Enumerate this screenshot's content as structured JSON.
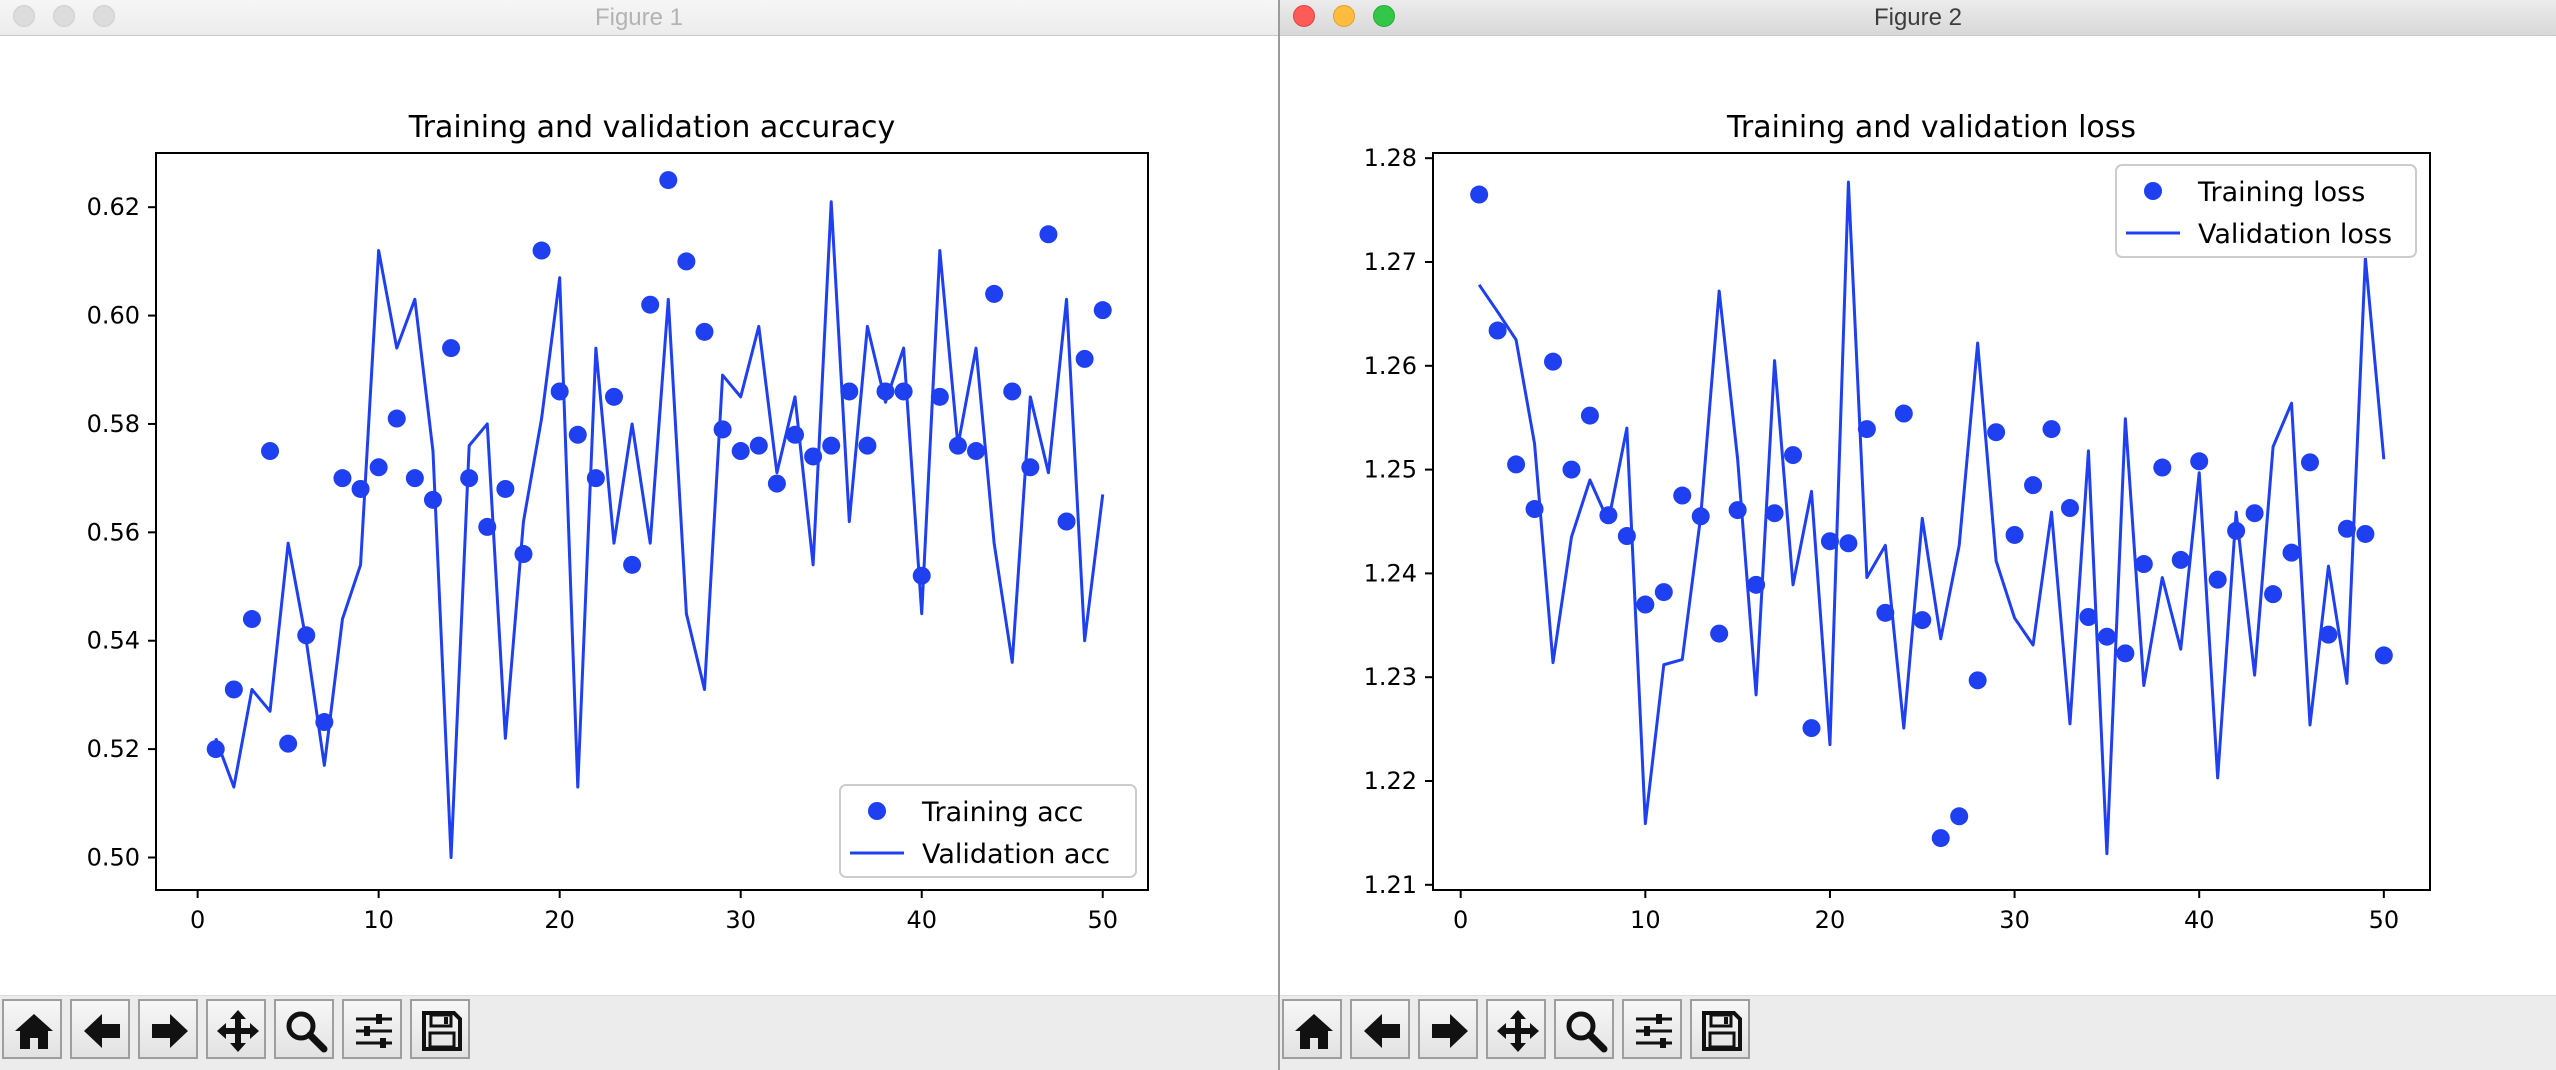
{
  "windows": [
    {
      "title": "Figure 1",
      "toolbar": [
        {
          "icon": "home-icon"
        },
        {
          "icon": "back-arrow-icon"
        },
        {
          "icon": "forward-arrow-icon"
        },
        {
          "icon": "pan-icon"
        },
        {
          "icon": "zoom-icon"
        },
        {
          "icon": "subplots-icon"
        },
        {
          "icon": "save-icon"
        }
      ],
      "chart_data": {
        "type": "line",
        "title": "Training and validation accuracy",
        "xlabel": "",
        "ylabel": "",
        "xlim": [
          -2.3,
          52.5
        ],
        "ylim": [
          0.494,
          0.63
        ],
        "xticks": [
          0,
          10,
          20,
          30,
          40,
          50
        ],
        "yticks": [
          0.5,
          0.52,
          0.54,
          0.56,
          0.58,
          0.6,
          0.62
        ],
        "ytick_labels": [
          "0.50",
          "0.52",
          "0.54",
          "0.56",
          "0.58",
          "0.60",
          "0.62"
        ],
        "xtick_labels": [
          "0",
          "10",
          "20",
          "30",
          "40",
          "50"
        ],
        "legend": {
          "placement": "lower right",
          "entries": [
            "Training acc",
            "Validation acc"
          ]
        },
        "color": "#1f40f0",
        "grid": false,
        "x": [
          1,
          2,
          3,
          4,
          5,
          6,
          7,
          8,
          9,
          10,
          11,
          12,
          13,
          14,
          15,
          16,
          17,
          18,
          19,
          20,
          21,
          22,
          23,
          24,
          25,
          26,
          27,
          28,
          29,
          30,
          31,
          32,
          33,
          34,
          35,
          36,
          37,
          38,
          39,
          40,
          41,
          42,
          43,
          44,
          45,
          46,
          47,
          48,
          49,
          50
        ],
        "series": [
          {
            "name": "Training acc",
            "style": "markers",
            "values": [
              0.52,
              0.531,
              0.544,
              0.575,
              0.521,
              0.541,
              0.525,
              0.57,
              0.568,
              0.572,
              0.581,
              0.57,
              0.566,
              0.594,
              0.57,
              0.561,
              0.568,
              0.556,
              0.612,
              0.586,
              0.578,
              0.57,
              0.585,
              0.554,
              0.602,
              0.625,
              0.61,
              0.597,
              0.579,
              0.575,
              0.576,
              0.569,
              0.578,
              0.574,
              0.576,
              0.586,
              0.576,
              0.586,
              0.586,
              0.552,
              0.585,
              0.576,
              0.575,
              0.604,
              0.586,
              0.572,
              0.615,
              0.562,
              0.592,
              0.601
            ]
          },
          {
            "name": "Validation acc",
            "style": "line",
            "values": [
              0.522,
              0.513,
              0.531,
              0.527,
              0.558,
              0.54,
              0.517,
              0.544,
              0.554,
              0.612,
              0.594,
              0.603,
              0.575,
              0.5,
              0.576,
              0.58,
              0.522,
              0.562,
              0.581,
              0.607,
              0.513,
              0.594,
              0.558,
              0.58,
              0.558,
              0.603,
              0.545,
              0.531,
              0.589,
              0.585,
              0.598,
              0.571,
              0.585,
              0.554,
              0.621,
              0.562,
              0.598,
              0.584,
              0.594,
              0.545,
              0.612,
              0.576,
              0.594,
              0.558,
              0.536,
              0.585,
              0.571,
              0.603,
              0.54,
              0.567
            ]
          }
        ]
      }
    },
    {
      "title": "Figure 2",
      "toolbar": [
        {
          "icon": "home-icon"
        },
        {
          "icon": "back-arrow-icon"
        },
        {
          "icon": "forward-arrow-icon"
        },
        {
          "icon": "pan-icon"
        },
        {
          "icon": "zoom-icon"
        },
        {
          "icon": "subplots-icon"
        },
        {
          "icon": "save-icon"
        }
      ],
      "chart_data": {
        "type": "line",
        "title": "Training and validation loss",
        "xlabel": "",
        "ylabel": "",
        "xlim": [
          -1.5,
          52.5
        ],
        "ylim": [
          1.2095,
          1.2805
        ],
        "xticks": [
          0,
          10,
          20,
          30,
          40,
          50
        ],
        "yticks": [
          1.21,
          1.22,
          1.23,
          1.24,
          1.25,
          1.26,
          1.27,
          1.28
        ],
        "ytick_labels": [
          "1.21",
          "1.22",
          "1.23",
          "1.24",
          "1.25",
          "1.26",
          "1.27",
          "1.28"
        ],
        "xtick_labels": [
          "0",
          "10",
          "20",
          "30",
          "40",
          "50"
        ],
        "legend": {
          "placement": "upper right",
          "entries": [
            "Training loss",
            "Validation loss"
          ]
        },
        "color": "#1f40f0",
        "grid": false,
        "x": [
          1,
          2,
          3,
          4,
          5,
          6,
          7,
          8,
          9,
          10,
          11,
          12,
          13,
          14,
          15,
          16,
          17,
          18,
          19,
          20,
          21,
          22,
          23,
          24,
          25,
          26,
          27,
          28,
          29,
          30,
          31,
          32,
          33,
          34,
          35,
          36,
          37,
          38,
          39,
          40,
          41,
          42,
          43,
          44,
          45,
          46,
          47,
          48,
          49,
          50
        ],
        "series": [
          {
            "name": "Training loss",
            "style": "markers",
            "values": [
              1.2765,
              1.2634,
              1.2505,
              1.2462,
              1.2604,
              1.25,
              1.2552,
              1.2456,
              1.2436,
              1.237,
              1.2382,
              1.2475,
              1.2455,
              1.2342,
              1.2461,
              1.2389,
              1.2458,
              1.2514,
              1.2251,
              1.2431,
              1.2429,
              1.2539,
              1.2362,
              1.2554,
              1.2355,
              1.2145,
              1.2166,
              1.2297,
              1.2536,
              1.2437,
              1.2485,
              1.2539,
              1.2463,
              1.2358,
              1.2339,
              1.2323,
              1.2409,
              1.2502,
              1.2413,
              1.2508,
              1.2394,
              1.2441,
              1.2458,
              1.238,
              1.242,
              1.2507,
              1.2341,
              1.2443,
              1.2438,
              1.2321
            ]
          },
          {
            "name": "Validation loss",
            "style": "line",
            "values": [
              1.2678,
              1.2652,
              1.2625,
              1.2525,
              1.2314,
              1.2435,
              1.249,
              1.245,
              1.254,
              1.2159,
              1.2312,
              1.2317,
              1.2455,
              1.2672,
              1.251,
              1.2283,
              1.2605,
              1.2389,
              1.2479,
              1.2235,
              1.2777,
              1.2396,
              1.2427,
              1.2251,
              1.2453,
              1.2337,
              1.2427,
              1.2622,
              1.2412,
              1.2357,
              1.2331,
              1.2459,
              1.2255,
              1.2518,
              1.213,
              1.2549,
              1.2292,
              1.2396,
              1.2327,
              1.2497,
              1.2203,
              1.2459,
              1.2302,
              1.2522,
              1.2564,
              1.2254,
              1.2407,
              1.2294,
              1.2704,
              1.251
            ]
          }
        ]
      }
    }
  ]
}
